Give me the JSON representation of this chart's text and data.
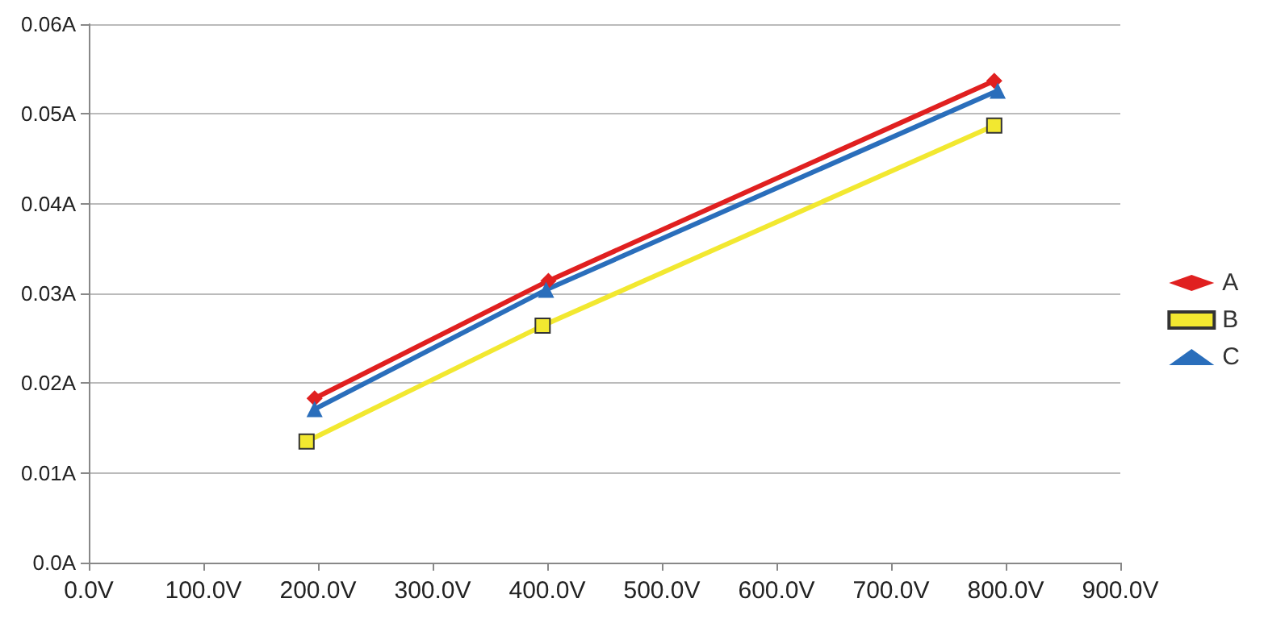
{
  "chart_data": {
    "type": "line",
    "series": [
      {
        "name": "A",
        "color": "#e02020",
        "marker": "diamond",
        "x": [
          197,
          401,
          790
        ],
        "values": [
          0.0183,
          0.0314,
          0.0537
        ]
      },
      {
        "name": "B",
        "color": "#f2e830",
        "marker": "square",
        "x": [
          190,
          396,
          790
        ],
        "values": [
          0.0135,
          0.0264,
          0.0487
        ]
      },
      {
        "name": "C",
        "color": "#2a6ebb",
        "marker": "triangle",
        "x": [
          197,
          399,
          793
        ],
        "values": [
          0.0171,
          0.0304,
          0.0526
        ]
      }
    ],
    "xlim": [
      0,
      900
    ],
    "xticks": [
      {
        "value": 0,
        "label": "0.0V"
      },
      {
        "value": 100,
        "label": "100.0V"
      },
      {
        "value": 200,
        "label": "200.0V"
      },
      {
        "value": 300,
        "label": "300.0V"
      },
      {
        "value": 400,
        "label": "400.0V"
      },
      {
        "value": 500,
        "label": "500.0V"
      },
      {
        "value": 600,
        "label": "600.0V"
      },
      {
        "value": 700,
        "label": "700.0V"
      },
      {
        "value": 800,
        "label": "800.0V"
      },
      {
        "value": 900,
        "label": "900.0V"
      }
    ],
    "ylim": [
      0,
      0.06
    ],
    "yticks": [
      {
        "value": 0,
        "label": "0.0A"
      },
      {
        "value": 0.01,
        "label": "0.01A"
      },
      {
        "value": 0.02,
        "label": "0.02A"
      },
      {
        "value": 0.03,
        "label": "0.03A"
      },
      {
        "value": 0.04,
        "label": "0.04A"
      },
      {
        "value": 0.05,
        "label": "0.05A"
      },
      {
        "value": 0.06,
        "label": "0.06A"
      }
    ],
    "grid": "y",
    "legend": "right"
  }
}
